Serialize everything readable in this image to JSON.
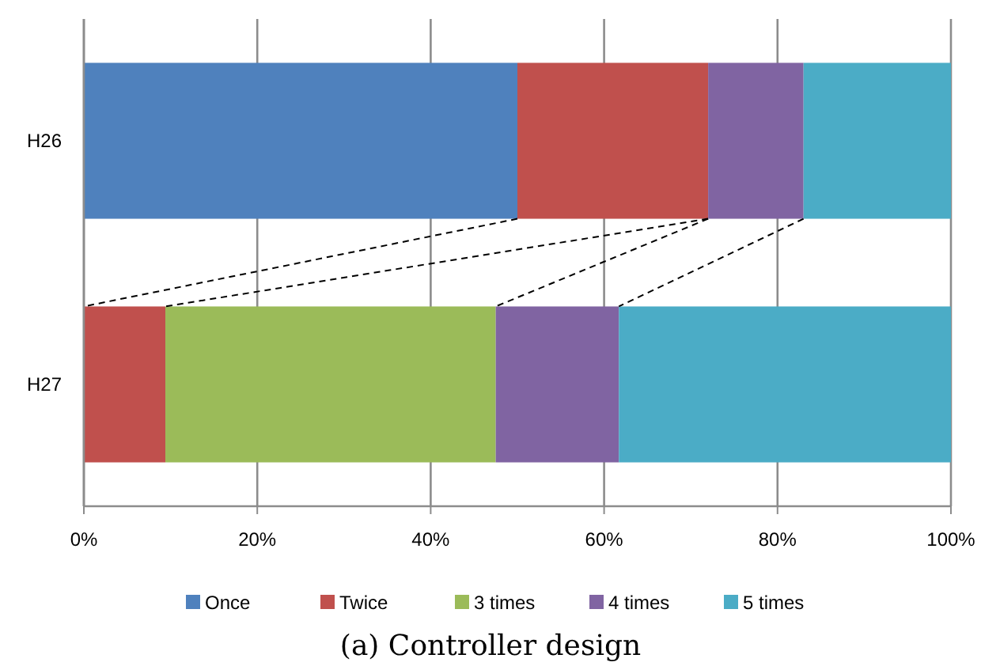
{
  "chart_data": {
    "type": "bar",
    "orientation": "horizontal",
    "stacked": true,
    "categories": [
      "H26",
      "H27"
    ],
    "series": [
      {
        "name": "Once",
        "color": "#4f81bd",
        "values": [
          50,
          0
        ]
      },
      {
        "name": "Twice",
        "color": "#c0504d",
        "values": [
          22,
          9.4
        ]
      },
      {
        "name": "3 times",
        "color": "#9bbb59",
        "values": [
          0,
          38.1
        ]
      },
      {
        "name": "4 times",
        "color": "#8064a2",
        "values": [
          11,
          14.2
        ]
      },
      {
        "name": "5 times",
        "color": "#4bacc6",
        "values": [
          17,
          38.3
        ]
      }
    ],
    "xlim": [
      0,
      100
    ],
    "xticks": [
      {
        "value": 0,
        "label": "0%"
      },
      {
        "value": 20,
        "label": "20%"
      },
      {
        "value": 40,
        "label": "40%"
      },
      {
        "value": 60,
        "label": "60%"
      },
      {
        "value": 80,
        "label": "80%"
      },
      {
        "value": 100,
        "label": "100%"
      }
    ],
    "grid": "x",
    "legend": "bottom",
    "annotations": [
      "(a) Controller design"
    ]
  }
}
